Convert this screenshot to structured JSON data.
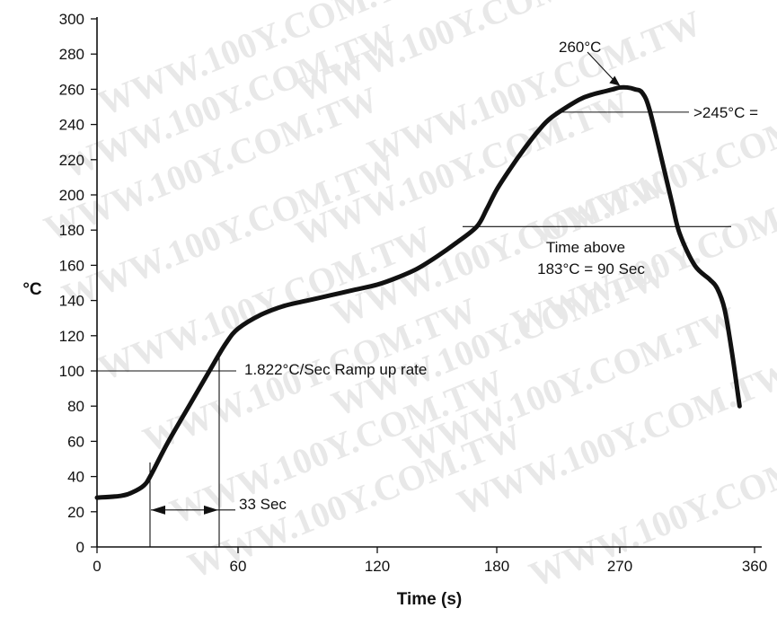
{
  "chart_data": {
    "type": "line",
    "xlabel": "Time (s)",
    "ylabel": "°C",
    "x_ticks": [
      "0",
      "60",
      "120",
      "180",
      "270",
      "360"
    ],
    "y_ticks": [
      0,
      20,
      40,
      60,
      80,
      100,
      120,
      140,
      160,
      180,
      200,
      220,
      240,
      260,
      280,
      300
    ],
    "ylim": [
      0,
      300
    ],
    "grid": false,
    "series": [
      {
        "x": [
          0,
          10,
          15,
          20,
          23,
          30,
          40,
          50,
          55,
          60,
          70,
          80,
          90,
          100,
          110,
          120,
          130,
          140,
          150,
          160,
          170,
          175,
          180,
          190,
          200,
          210,
          220,
          240,
          250,
          260,
          265,
          270,
          275,
          280,
          285,
          290,
          300,
          305,
          310,
          320,
          330,
          335,
          340,
          345,
          350
        ],
        "y": [
          28,
          29,
          31,
          35,
          41,
          59,
          82,
          105,
          116,
          124,
          132,
          137,
          140,
          143,
          146,
          149,
          153,
          158,
          165,
          173,
          182,
          192,
          203,
          215,
          226,
          236,
          244,
          254,
          257,
          259,
          260,
          261,
          261,
          260,
          258,
          248,
          213,
          195,
          178,
          160,
          152,
          147,
          135,
          110,
          80
        ]
      }
    ],
    "watermark": "WWW.100Y.COM.TW",
    "annotations": {
      "ramp_rate": "1.822°C/Sec Ramp up rate",
      "time_span": "33 Sec",
      "time_above_line1": "Time above",
      "time_above_line2": "183°C = 90 Sec",
      "above_245": ">245°C =",
      "peak": "260°C"
    }
  }
}
